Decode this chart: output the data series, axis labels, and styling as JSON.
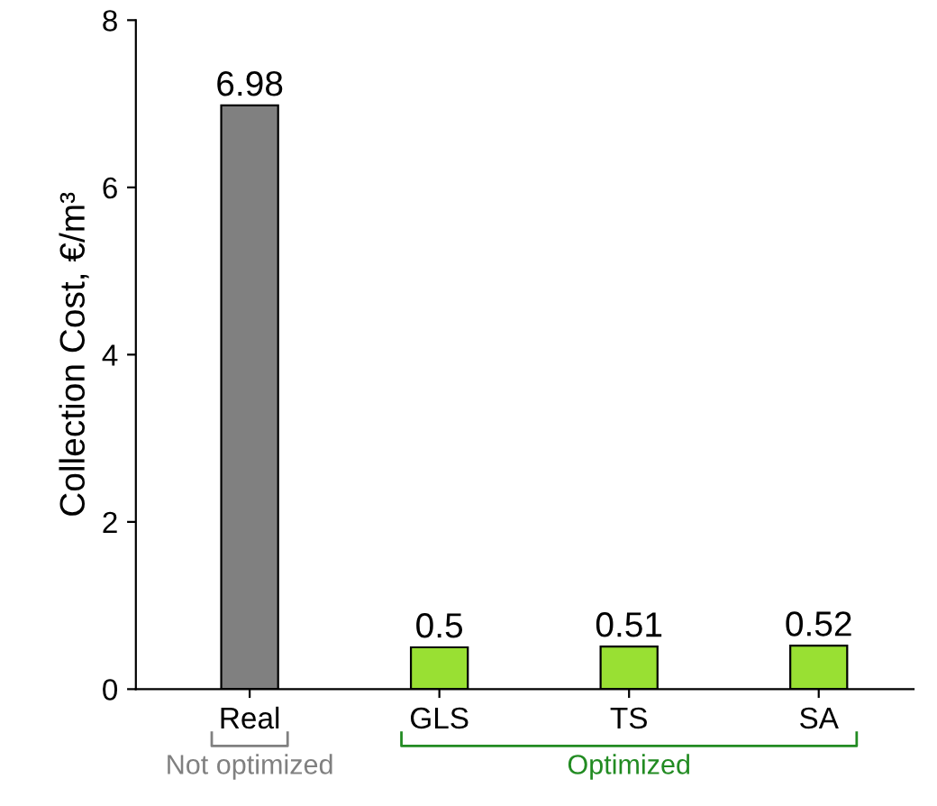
{
  "chart_data": {
    "type": "bar",
    "ylabel": "Collection Cost, €/m³",
    "categories": [
      "Real",
      "GLS",
      "TS",
      "SA"
    ],
    "values": [
      6.98,
      0.5,
      0.51,
      0.52
    ],
    "colors": [
      "#808080",
      "#99e033",
      "#99e033",
      "#99e033"
    ],
    "ylim": [
      0,
      8
    ],
    "yticks": [
      0,
      2,
      4,
      6,
      8
    ],
    "data_labels": true,
    "grid": false,
    "annotations": [
      "Not optimized",
      "Optimized"
    ]
  }
}
